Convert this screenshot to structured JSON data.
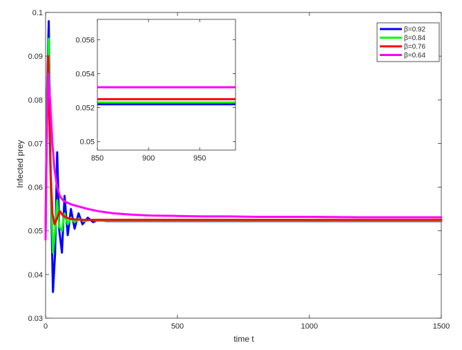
{
  "chart_data": {
    "type": "line",
    "title": "",
    "xlabel": "time t",
    "ylabel": "Infected prey",
    "xlim": [
      0,
      1500
    ],
    "ylim": [
      0.03,
      0.1
    ],
    "xticks": [
      0,
      500,
      1000,
      1500
    ],
    "yticks": [
      0.03,
      0.04,
      0.05,
      0.06,
      0.07,
      0.08,
      0.09,
      0.1
    ],
    "grid": false,
    "legend_position": "top-right",
    "series": [
      {
        "name": "β=0.92",
        "color": "#0000ff",
        "x": [
          0,
          5,
          12,
          20,
          28,
          36,
          44,
          52,
          62,
          72,
          84,
          96,
          110,
          125,
          140,
          160,
          180,
          200,
          230,
          260,
          300,
          400,
          600,
          800,
          1000,
          1200,
          1500
        ],
        "y": [
          0.05,
          0.08,
          0.098,
          0.06,
          0.036,
          0.045,
          0.068,
          0.05,
          0.045,
          0.058,
          0.049,
          0.055,
          0.0505,
          0.054,
          0.0515,
          0.053,
          0.052,
          0.0525,
          0.0522,
          0.0522,
          0.0522,
          0.0522,
          0.0522,
          0.0522,
          0.0522,
          0.0522,
          0.0522
        ]
      },
      {
        "name": "β=0.84",
        "color": "#00ff00",
        "x": [
          0,
          5,
          12,
          20,
          28,
          36,
          44,
          52,
          62,
          72,
          84,
          96,
          110,
          125,
          145,
          170,
          200,
          250,
          300,
          400,
          600,
          800,
          1000,
          1200,
          1500
        ],
        "y": [
          0.05,
          0.08,
          0.094,
          0.06,
          0.045,
          0.05,
          0.057,
          0.051,
          0.05,
          0.054,
          0.0515,
          0.053,
          0.052,
          0.0528,
          0.0522,
          0.0525,
          0.0523,
          0.0523,
          0.0523,
          0.0523,
          0.0523,
          0.0523,
          0.0523,
          0.0523,
          0.0523
        ]
      },
      {
        "name": "β=0.76",
        "color": "#ff0000",
        "x": [
          0,
          4,
          10,
          18,
          26,
          34,
          44,
          54,
          66,
          80,
          95,
          115,
          140,
          170,
          200,
          260,
          300,
          400,
          600,
          800,
          1000,
          1200,
          1500
        ],
        "y": [
          0.05,
          0.07,
          0.09,
          0.065,
          0.054,
          0.0515,
          0.053,
          0.0545,
          0.0535,
          0.053,
          0.0527,
          0.0526,
          0.0525,
          0.0525,
          0.0525,
          0.0525,
          0.0525,
          0.0525,
          0.0525,
          0.0525,
          0.0525,
          0.0525,
          0.0525
        ]
      },
      {
        "name": "β=0.64",
        "color": "#ff00ff",
        "x": [
          0,
          4,
          10,
          18,
          26,
          34,
          44,
          54,
          66,
          80,
          100,
          130,
          160,
          200,
          260,
          330,
          400,
          500,
          600,
          700,
          800,
          1000,
          1200,
          1500
        ],
        "y": [
          0.048,
          0.07,
          0.086,
          0.079,
          0.07,
          0.064,
          0.06,
          0.058,
          0.057,
          0.0565,
          0.056,
          0.0555,
          0.055,
          0.0545,
          0.054,
          0.0537,
          0.0535,
          0.0534,
          0.0533,
          0.0533,
          0.0532,
          0.0532,
          0.0531,
          0.0531
        ]
      }
    ],
    "inset": {
      "xlim": [
        850,
        985
      ],
      "ylim": [
        0.0495,
        0.0572
      ],
      "xticks": [
        850,
        900,
        950
      ],
      "yticks": [
        0.05,
        0.052,
        0.054,
        0.056
      ],
      "series_values": [
        {
          "name": "β=0.92",
          "value": 0.0522
        },
        {
          "name": "β=0.84",
          "value": 0.0523
        },
        {
          "name": "β=0.76",
          "value": 0.0525
        },
        {
          "name": "β=0.64",
          "value": 0.0532
        }
      ]
    }
  }
}
